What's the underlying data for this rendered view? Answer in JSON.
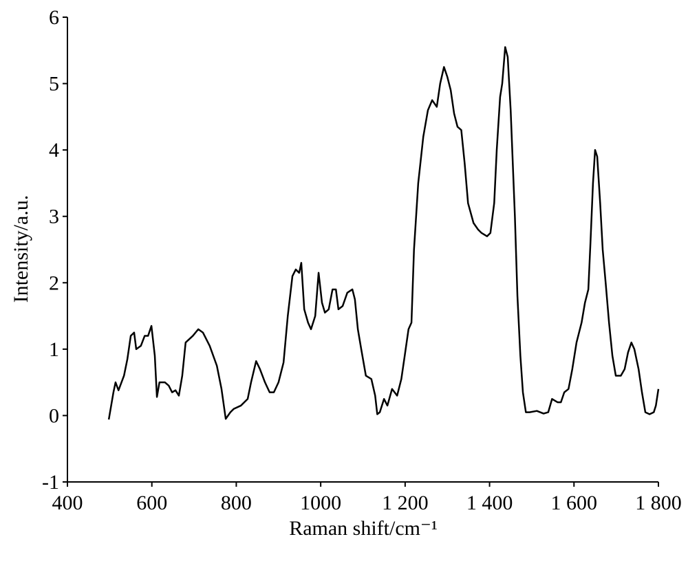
{
  "chart_data": {
    "type": "line",
    "xlabel": "Raman shift/cm⁻¹",
    "ylabel": "Intensity/a.u.",
    "xlim": [
      400,
      1800
    ],
    "xticks": [
      400,
      600,
      800,
      1000,
      {
        "value": 1200,
        "label": "1 200"
      },
      {
        "value": 1400,
        "label": "1 400"
      },
      {
        "value": 1600,
        "label": "1 600"
      },
      {
        "value": 1800,
        "label": "1 800"
      }
    ],
    "ylim": [
      -1,
      6
    ],
    "yticks": [
      -1,
      0,
      1,
      2,
      3,
      4,
      5,
      6
    ],
    "grid": false,
    "series": [
      {
        "color": "#000000",
        "x": [
          498,
          509,
          514,
          521,
          534,
          542,
          550,
          558,
          563,
          574,
          583,
          591,
          599,
          607,
          612,
          618,
          631,
          640,
          648,
          656,
          664,
          672,
          680,
          697,
          710,
          721,
          737,
          754,
          765,
          775,
          786,
          794,
          811,
          827,
          835,
          847,
          856,
          868,
          879,
          889,
          900,
          912,
          922,
          933,
          941,
          949,
          954,
          961,
          970,
          977,
          987,
          995,
          1003,
          1010,
          1019,
          1028,
          1036,
          1042,
          1052,
          1063,
          1075,
          1081,
          1088,
          1096,
          1107,
          1120,
          1129,
          1134,
          1140,
          1150,
          1158,
          1169,
          1181,
          1191,
          1199,
          1208,
          1215,
          1221,
          1231,
          1243,
          1254,
          1264,
          1275,
          1283,
          1292,
          1300,
          1308,
          1316,
          1324,
          1333,
          1341,
          1349,
          1362,
          1373,
          1381,
          1394,
          1402,
          1411,
          1417,
          1425,
          1430,
          1437,
          1443,
          1450,
          1455,
          1460,
          1466,
          1473,
          1479,
          1486,
          1495,
          1512,
          1528,
          1539,
          1548,
          1561,
          1569,
          1577,
          1587,
          1596,
          1606,
          1618,
          1626,
          1634,
          1639,
          1645,
          1650,
          1655,
          1662,
          1668,
          1675,
          1683,
          1691,
          1699,
          1711,
          1720,
          1728,
          1736,
          1743,
          1753,
          1761,
          1769,
          1779,
          1789,
          1794,
          1800
        ],
        "values": [
          -0.06,
          0.35,
          0.5,
          0.38,
          0.6,
          0.85,
          1.2,
          1.25,
          1.0,
          1.05,
          1.2,
          1.2,
          1.35,
          0.9,
          0.28,
          0.5,
          0.5,
          0.45,
          0.35,
          0.38,
          0.3,
          0.6,
          1.1,
          1.2,
          1.3,
          1.25,
          1.05,
          0.75,
          0.4,
          -0.05,
          0.05,
          0.1,
          0.15,
          0.25,
          0.5,
          0.82,
          0.7,
          0.5,
          0.35,
          0.35,
          0.5,
          0.8,
          1.5,
          2.1,
          2.2,
          2.15,
          2.3,
          1.6,
          1.4,
          1.3,
          1.5,
          2.15,
          1.7,
          1.55,
          1.6,
          1.9,
          1.9,
          1.6,
          1.65,
          1.85,
          1.9,
          1.75,
          1.3,
          1.0,
          0.6,
          0.55,
          0.3,
          0.02,
          0.05,
          0.25,
          0.15,
          0.4,
          0.3,
          0.55,
          0.9,
          1.3,
          1.4,
          2.5,
          3.5,
          4.2,
          4.6,
          4.75,
          4.65,
          5.0,
          5.25,
          5.1,
          4.9,
          4.55,
          4.35,
          4.3,
          3.8,
          3.2,
          2.9,
          2.8,
          2.75,
          2.7,
          2.75,
          3.2,
          4.0,
          4.8,
          5.0,
          5.55,
          5.4,
          4.6,
          3.8,
          3.0,
          1.8,
          0.9,
          0.35,
          0.05,
          0.05,
          0.07,
          0.03,
          0.05,
          0.25,
          0.2,
          0.2,
          0.35,
          0.4,
          0.7,
          1.1,
          1.4,
          1.7,
          1.9,
          2.6,
          3.5,
          4.0,
          3.9,
          3.2,
          2.5,
          2.0,
          1.4,
          0.9,
          0.6,
          0.6,
          0.7,
          0.95,
          1.1,
          1.0,
          0.7,
          0.35,
          0.05,
          0.02,
          0.05,
          0.15,
          0.4
        ]
      }
    ]
  }
}
